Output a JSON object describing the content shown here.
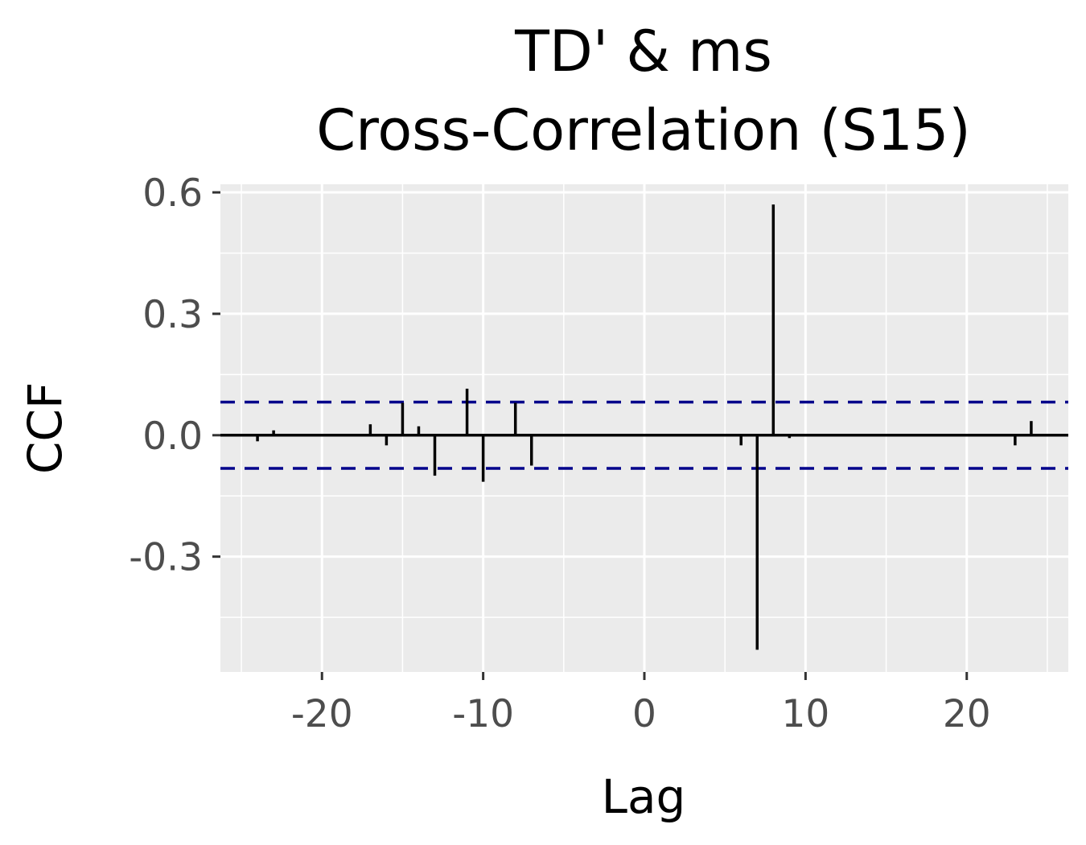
{
  "chart_data": {
    "type": "bar",
    "title_lines": [
      "TD' & ms",
      "Cross-Correlation (S15)"
    ],
    "xlabel": "Lag",
    "ylabel": "CCF",
    "xlim": [
      -26.3,
      26.3
    ],
    "ylim": [
      -0.585,
      0.62
    ],
    "x_ticks": [
      -20,
      -10,
      0,
      10,
      20
    ],
    "x_tick_labels": [
      "-20",
      "-10",
      "0",
      "10",
      "20"
    ],
    "y_ticks": [
      -0.3,
      0.0,
      0.3,
      0.6
    ],
    "y_tick_labels": [
      "-0.3",
      "0.0",
      "0.3",
      "0.6"
    ],
    "grid": true,
    "background": "#ebebeb",
    "grid_color": "#ffffff",
    "bar_color": "#000000",
    "zero_line_color": "#000000",
    "confidence_limit": 0.082,
    "confidence_color": "#00008b",
    "confidence_style": "dashed",
    "lags": [
      -24,
      -23,
      -22,
      -21,
      -20,
      -19,
      -18,
      -17,
      -16,
      -15,
      -14,
      -13,
      -12,
      -11,
      -10,
      -9,
      -8,
      -7,
      -6,
      -5,
      -4,
      -3,
      -2,
      -1,
      0,
      1,
      2,
      3,
      4,
      5,
      6,
      7,
      8,
      9,
      10,
      11,
      12,
      13,
      14,
      15,
      16,
      17,
      18,
      19,
      20,
      21,
      22,
      23,
      24
    ],
    "values": [
      -0.015,
      0.012,
      0.0,
      0.0,
      0.0,
      0.0,
      0.0,
      0.027,
      -0.025,
      0.08,
      0.022,
      -0.1,
      0.0,
      0.115,
      -0.115,
      0.0,
      0.08,
      -0.075,
      0.0,
      0.0,
      0.0,
      0.0,
      0.0,
      0.0,
      0.0,
      0.0,
      0.0,
      0.0,
      0.0,
      0.0,
      -0.025,
      -0.53,
      0.57,
      -0.007,
      0.0,
      0.0,
      0.0,
      0.0,
      0.0,
      0.0,
      0.0,
      0.0,
      0.0,
      0.0,
      0.0,
      0.0,
      0.0,
      -0.025,
      0.035
    ]
  }
}
